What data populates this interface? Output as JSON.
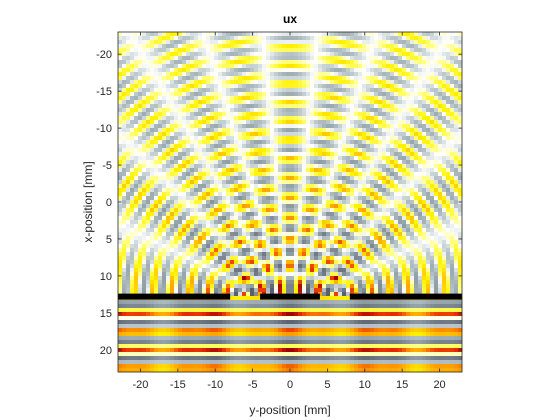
{
  "chart_data": {
    "type": "heatmap",
    "title": "ux",
    "xlabel": "y-position [mm]",
    "ylabel": "x-position [mm]",
    "xlim": [
      -23,
      23
    ],
    "ylim": [
      -23,
      23
    ],
    "y_axis_reversed": true,
    "xticks": [
      -20,
      -15,
      -10,
      -5,
      0,
      5,
      10,
      15,
      20
    ],
    "yticks": [
      -20,
      -15,
      -10,
      -5,
      0,
      5,
      10,
      15,
      20
    ],
    "xtick_labels": [
      "-20",
      "-15",
      "-10",
      "-5",
      "0",
      "5",
      "10",
      "15",
      "20"
    ],
    "ytick_labels": [
      "-20",
      "-15",
      "-10",
      "-5",
      "0",
      "5",
      "10",
      "15",
      "20"
    ],
    "grid": false,
    "colormap": "diverging: dark grey-blue / light grey / white / yellow / orange / red",
    "colors": {
      "negative_dark": "#5a5f6e",
      "negative_light": "#c8d4d6",
      "zero": "#ffffff",
      "positive_light": "#ffff30",
      "positive_mid": "#ff9900",
      "positive_dark": "#b00000",
      "barrier": "#000000"
    },
    "barrier": {
      "x_position": 12.8,
      "slits": [
        [
          -8,
          -4
        ],
        [
          4,
          8
        ]
      ]
    },
    "annotations": []
  }
}
